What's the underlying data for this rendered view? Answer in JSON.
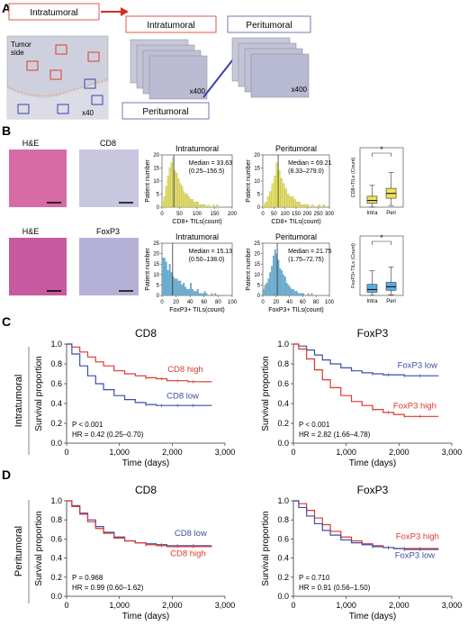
{
  "panels": {
    "a": {
      "letter": "A",
      "box_intra_1": "Intratumoral",
      "box_intra_2": "Intratumoral",
      "box_peri_1": "Peritumoral",
      "box_peri_2": "Peritumoral",
      "tumor_side": "Tumor\nside",
      "mag_40": "x40",
      "mag_400_a": "x400",
      "mag_400_b": "x400"
    },
    "b": {
      "letter": "B",
      "he_1": "H&E",
      "cd8": "CD8",
      "he_2": "H&E",
      "foxp3": "FoxP3",
      "colors": {
        "cd8_bar": "#e8e25a",
        "foxp3_bar": "#5aaee6",
        "he_tissue": "#d66ba6",
        "ihc_tissue": "#b8b4d8"
      }
    },
    "c": {
      "letter": "C",
      "side_label": "Intratumoral"
    },
    "d": {
      "letter": "D",
      "side_label": "Peritumoral"
    }
  },
  "chart_data": [
    {
      "id": "hist_cd8_intra",
      "type": "bar",
      "title": "Intratumoral",
      "xlabel": "CD8+ TILs(count)",
      "ylabel": "Patient number",
      "xlim": [
        0,
        200
      ],
      "ylim": [
        0,
        20
      ],
      "xticks": [
        "0",
        "50",
        "100",
        "150",
        "200"
      ],
      "yticks": [
        "0",
        "5",
        "10",
        "15",
        "20"
      ],
      "bin_width": 5,
      "bin_starts": [
        0,
        5,
        10,
        15,
        20,
        25,
        30,
        35,
        40,
        45,
        50,
        55,
        60,
        65,
        70,
        75,
        80,
        85,
        90,
        95,
        100,
        105,
        110,
        115,
        120,
        125,
        130,
        135,
        140,
        145,
        150,
        155
      ],
      "values": [
        2,
        4,
        8,
        12,
        15,
        17,
        19,
        14,
        13,
        11,
        9,
        8,
        6,
        5,
        5,
        4,
        3,
        3,
        2,
        2,
        2,
        1,
        1,
        1,
        1,
        0,
        1,
        0,
        0,
        1,
        0,
        1
      ],
      "annotation": "Median = 33.63\n(0.25–156.5)",
      "median": 33.63
    },
    {
      "id": "hist_cd8_peri",
      "type": "bar",
      "title": "Peritumoral",
      "xlabel": "CD8+ TILs(count)",
      "ylabel": "Patient number",
      "xlim": [
        0,
        300
      ],
      "ylim": [
        0,
        20
      ],
      "xticks": [
        "0",
        "50",
        "100",
        "150",
        "200",
        "250",
        "300"
      ],
      "yticks": [
        "0",
        "5",
        "10",
        "15",
        "20"
      ],
      "bin_width": 10,
      "bin_starts": [
        0,
        10,
        20,
        30,
        40,
        50,
        60,
        70,
        80,
        90,
        100,
        110,
        120,
        130,
        140,
        150,
        160,
        170,
        180,
        190,
        200,
        210,
        220,
        230,
        240,
        250,
        260,
        270
      ],
      "values": [
        1,
        2,
        4,
        6,
        9,
        12,
        17,
        14,
        11,
        9,
        7,
        5,
        4,
        4,
        3,
        2,
        2,
        1,
        1,
        1,
        1,
        0,
        1,
        0,
        0,
        1,
        0,
        1
      ],
      "annotation": "Median = 69.21\n(8.33–279.0)",
      "median": 69.21
    },
    {
      "id": "box_cd8",
      "type": "box",
      "ylabel": "CD8+TILs (Count)",
      "categories": [
        "Intra",
        "Peri"
      ],
      "ylim": [
        0,
        300
      ],
      "boxes": [
        {
          "whisker_low": 0.25,
          "q1": 20,
          "median": 33.6,
          "q3": 55,
          "whisker_high": 110
        },
        {
          "whisker_low": 8.3,
          "q1": 45,
          "median": 69.2,
          "q3": 95,
          "whisker_high": 175
        }
      ],
      "significance": "*",
      "colors": [
        "#f0e258",
        "#f0e258"
      ]
    },
    {
      "id": "hist_foxp3_intra",
      "type": "bar",
      "title": "Intratumoral",
      "xlabel": "FoxP3+ TILs(count)",
      "ylabel": "Patient number",
      "xlim": [
        0,
        100
      ],
      "ylim": [
        0,
        25
      ],
      "xticks": [
        "0",
        "20",
        "40",
        "60",
        "80",
        "100"
      ],
      "yticks": [
        "0",
        "5",
        "10",
        "15",
        "20",
        "25"
      ],
      "bin_width": 2.5,
      "bin_starts": [
        0,
        2.5,
        5,
        7.5,
        10,
        12.5,
        15,
        17.5,
        20,
        22.5,
        25,
        27.5,
        30,
        32.5,
        35,
        37.5,
        40,
        42.5,
        45,
        47.5,
        50,
        52.5,
        55,
        57.5,
        60,
        62.5,
        65,
        67.5,
        70,
        72.5,
        75,
        77.5,
        80,
        82.5,
        85,
        87.5,
        90,
        92.5,
        95,
        97.5
      ],
      "values": [
        18,
        18,
        16,
        12,
        15,
        11,
        9,
        8,
        8,
        7,
        7,
        5,
        6,
        4,
        3,
        3,
        6,
        3,
        2,
        2,
        3,
        1,
        1,
        1,
        2,
        1,
        0,
        0,
        1,
        0,
        1,
        0,
        0,
        0,
        0,
        0,
        0,
        0,
        0,
        0
      ],
      "annotation": "Median = 15.13\n(0.50–138.0)",
      "median": 15.13
    },
    {
      "id": "hist_foxp3_peri",
      "type": "bar",
      "title": "Peritumoral",
      "xlabel": "FoxP3+ TILs(count)",
      "ylabel": "Patient number",
      "xlim": [
        0,
        100
      ],
      "ylim": [
        0,
        25
      ],
      "xticks": [
        "0",
        "20",
        "40",
        "60",
        "80",
        "100"
      ],
      "yticks": [
        "0",
        "5",
        "10",
        "15",
        "20",
        "25"
      ],
      "bin_width": 2.5,
      "bin_starts": [
        0,
        2.5,
        5,
        7.5,
        10,
        12.5,
        15,
        17.5,
        20,
        22.5,
        25,
        27.5,
        30,
        32.5,
        35,
        37.5,
        40,
        42.5,
        45,
        47.5,
        50,
        52.5,
        55,
        57.5,
        60,
        62.5,
        65,
        67.5,
        70,
        72.5
      ],
      "values": [
        3,
        5,
        6,
        8,
        11,
        14,
        19,
        22,
        20,
        17,
        13,
        12,
        10,
        9,
        6,
        5,
        4,
        3,
        3,
        2,
        2,
        1,
        1,
        1,
        1,
        0,
        0,
        1,
        0,
        1
      ],
      "annotation": "Median = 21.75\n(1.75–72.75)",
      "median": 21.75
    },
    {
      "id": "box_foxp3",
      "type": "box",
      "ylabel": "FoxP3+TILs (Count)",
      "categories": [
        "Intra",
        "Peri"
      ],
      "ylim": [
        0,
        150
      ],
      "boxes": [
        {
          "whisker_low": 0.5,
          "q1": 8,
          "median": 15,
          "q3": 28,
          "whisker_high": 62
        },
        {
          "whisker_low": 1.75,
          "q1": 13,
          "median": 22,
          "q3": 33,
          "whisker_high": 72
        }
      ],
      "significance": "*",
      "colors": [
        "#5aaee6",
        "#5aaee6"
      ]
    },
    {
      "id": "km_intra_cd8",
      "type": "line",
      "title": "CD8",
      "xlabel": "Time (days)",
      "ylabel": "Survival proportion",
      "xlim": [
        0,
        3000
      ],
      "ylim": [
        0,
        1.0
      ],
      "xticks": [
        "0",
        "1,000",
        "2,000",
        "3,000"
      ],
      "yticks": [
        "0.0",
        "0.2",
        "0.4",
        "0.6",
        "0.8",
        "1.0"
      ],
      "series": [
        {
          "name": "CD8 high",
          "color": "#d93a2e",
          "x": [
            0,
            100,
            250,
            400,
            550,
            700,
            900,
            1100,
            1300,
            1500,
            1700,
            1900,
            2100,
            2300,
            2500,
            2750
          ],
          "y": [
            1.0,
            0.97,
            0.92,
            0.87,
            0.82,
            0.78,
            0.73,
            0.7,
            0.68,
            0.66,
            0.65,
            0.63,
            0.63,
            0.62,
            0.62,
            0.62
          ]
        },
        {
          "name": "CD8 low",
          "color": "#3c4fa5",
          "x": [
            0,
            100,
            250,
            400,
            550,
            700,
            900,
            1100,
            1300,
            1500,
            1700,
            1900,
            2100,
            2300,
            2500,
            2750
          ],
          "y": [
            1.0,
            0.9,
            0.78,
            0.68,
            0.6,
            0.54,
            0.48,
            0.44,
            0.41,
            0.39,
            0.38,
            0.38,
            0.38,
            0.38,
            0.38,
            0.38
          ]
        }
      ],
      "stats": [
        "P < 0.001",
        "HR = 0.42 (0.25–0.70)"
      ]
    },
    {
      "id": "km_intra_foxp3",
      "type": "line",
      "title": "FoxP3",
      "xlabel": "Time (days)",
      "ylabel": "Survival proportion",
      "xlim": [
        0,
        3000
      ],
      "ylim": [
        0,
        1.0
      ],
      "xticks": [
        "0",
        "1,000",
        "2,000",
        "3,000"
      ],
      "yticks": [
        "0.0",
        "0.2",
        "0.4",
        "0.6",
        "0.8",
        "1.0"
      ],
      "series": [
        {
          "name": "FoxP3 low",
          "color": "#3c4fa5",
          "x": [
            0,
            100,
            250,
            400,
            550,
            700,
            900,
            1100,
            1300,
            1500,
            1700,
            1900,
            2100,
            2300,
            2500,
            2750
          ],
          "y": [
            1.0,
            0.98,
            0.94,
            0.89,
            0.84,
            0.8,
            0.76,
            0.73,
            0.71,
            0.7,
            0.69,
            0.69,
            0.68,
            0.68,
            0.68,
            0.68
          ]
        },
        {
          "name": "FoxP3 high",
          "color": "#d93a2e",
          "x": [
            0,
            100,
            250,
            400,
            550,
            700,
            900,
            1100,
            1300,
            1500,
            1700,
            1900,
            2100,
            2300,
            2500,
            2750
          ],
          "y": [
            1.0,
            0.95,
            0.85,
            0.74,
            0.64,
            0.56,
            0.48,
            0.42,
            0.38,
            0.34,
            0.31,
            0.29,
            0.27,
            0.27,
            0.27,
            0.27
          ]
        }
      ],
      "stats": [
        "P < 0.001",
        "HR = 2.82 (1.66–4.78)"
      ]
    },
    {
      "id": "km_peri_cd8",
      "type": "line",
      "title": "CD8",
      "xlabel": "Time (days)",
      "ylabel": "Survival proportion",
      "xlim": [
        0,
        3000
      ],
      "ylim": [
        0,
        1.0
      ],
      "xticks": [
        "0",
        "1,000",
        "2,000",
        "3,000"
      ],
      "yticks": [
        "0.0",
        "0.2",
        "0.4",
        "0.6",
        "0.8",
        "1.0"
      ],
      "series": [
        {
          "name": "CD8 low",
          "color": "#3c4fa5",
          "x": [
            0,
            100,
            250,
            400,
            550,
            700,
            900,
            1100,
            1300,
            1500,
            1700,
            1900,
            2100,
            2300,
            2500,
            2750
          ],
          "y": [
            1.0,
            0.95,
            0.87,
            0.8,
            0.73,
            0.67,
            0.62,
            0.58,
            0.56,
            0.55,
            0.54,
            0.53,
            0.53,
            0.53,
            0.53,
            0.53
          ]
        },
        {
          "name": "CD8 high",
          "color": "#d93a2e",
          "x": [
            0,
            100,
            250,
            400,
            550,
            700,
            900,
            1100,
            1300,
            1500,
            1700,
            1900,
            2100,
            2300,
            2500,
            2750
          ],
          "y": [
            1.0,
            0.94,
            0.86,
            0.78,
            0.71,
            0.66,
            0.61,
            0.58,
            0.56,
            0.54,
            0.53,
            0.52,
            0.52,
            0.52,
            0.52,
            0.52
          ]
        }
      ],
      "stats": [
        "P = 0.968",
        "HR = 0.99 (0.60–1.62)"
      ]
    },
    {
      "id": "km_peri_foxp3",
      "type": "line",
      "title": "FoxP3",
      "xlabel": "Time (days)",
      "ylabel": "Survival proportion",
      "xlim": [
        0,
        3000
      ],
      "ylim": [
        0,
        1.0
      ],
      "xticks": [
        "0",
        "1,000",
        "2,000",
        "3,000"
      ],
      "yticks": [
        "0.0",
        "0.2",
        "0.4",
        "0.6",
        "0.8",
        "1.0"
      ],
      "series": [
        {
          "name": "FoxP3 high",
          "color": "#d93a2e",
          "x": [
            0,
            100,
            250,
            400,
            550,
            700,
            900,
            1100,
            1300,
            1500,
            1700,
            1900,
            2100,
            2300,
            2500,
            2750
          ],
          "y": [
            1.0,
            0.97,
            0.9,
            0.82,
            0.75,
            0.68,
            0.62,
            0.58,
            0.55,
            0.53,
            0.51,
            0.5,
            0.5,
            0.5,
            0.5,
            0.5
          ]
        },
        {
          "name": "FoxP3 low",
          "color": "#3c4fa5",
          "x": [
            0,
            100,
            250,
            400,
            550,
            700,
            900,
            1100,
            1300,
            1500,
            1700,
            1900,
            2100,
            2300,
            2500,
            2750
          ],
          "y": [
            1.0,
            0.93,
            0.84,
            0.76,
            0.69,
            0.64,
            0.59,
            0.56,
            0.54,
            0.52,
            0.51,
            0.5,
            0.49,
            0.49,
            0.49,
            0.49
          ]
        }
      ],
      "stats": [
        "P = 0.710",
        "HR = 0.91 (0.56–1.50)"
      ]
    }
  ]
}
